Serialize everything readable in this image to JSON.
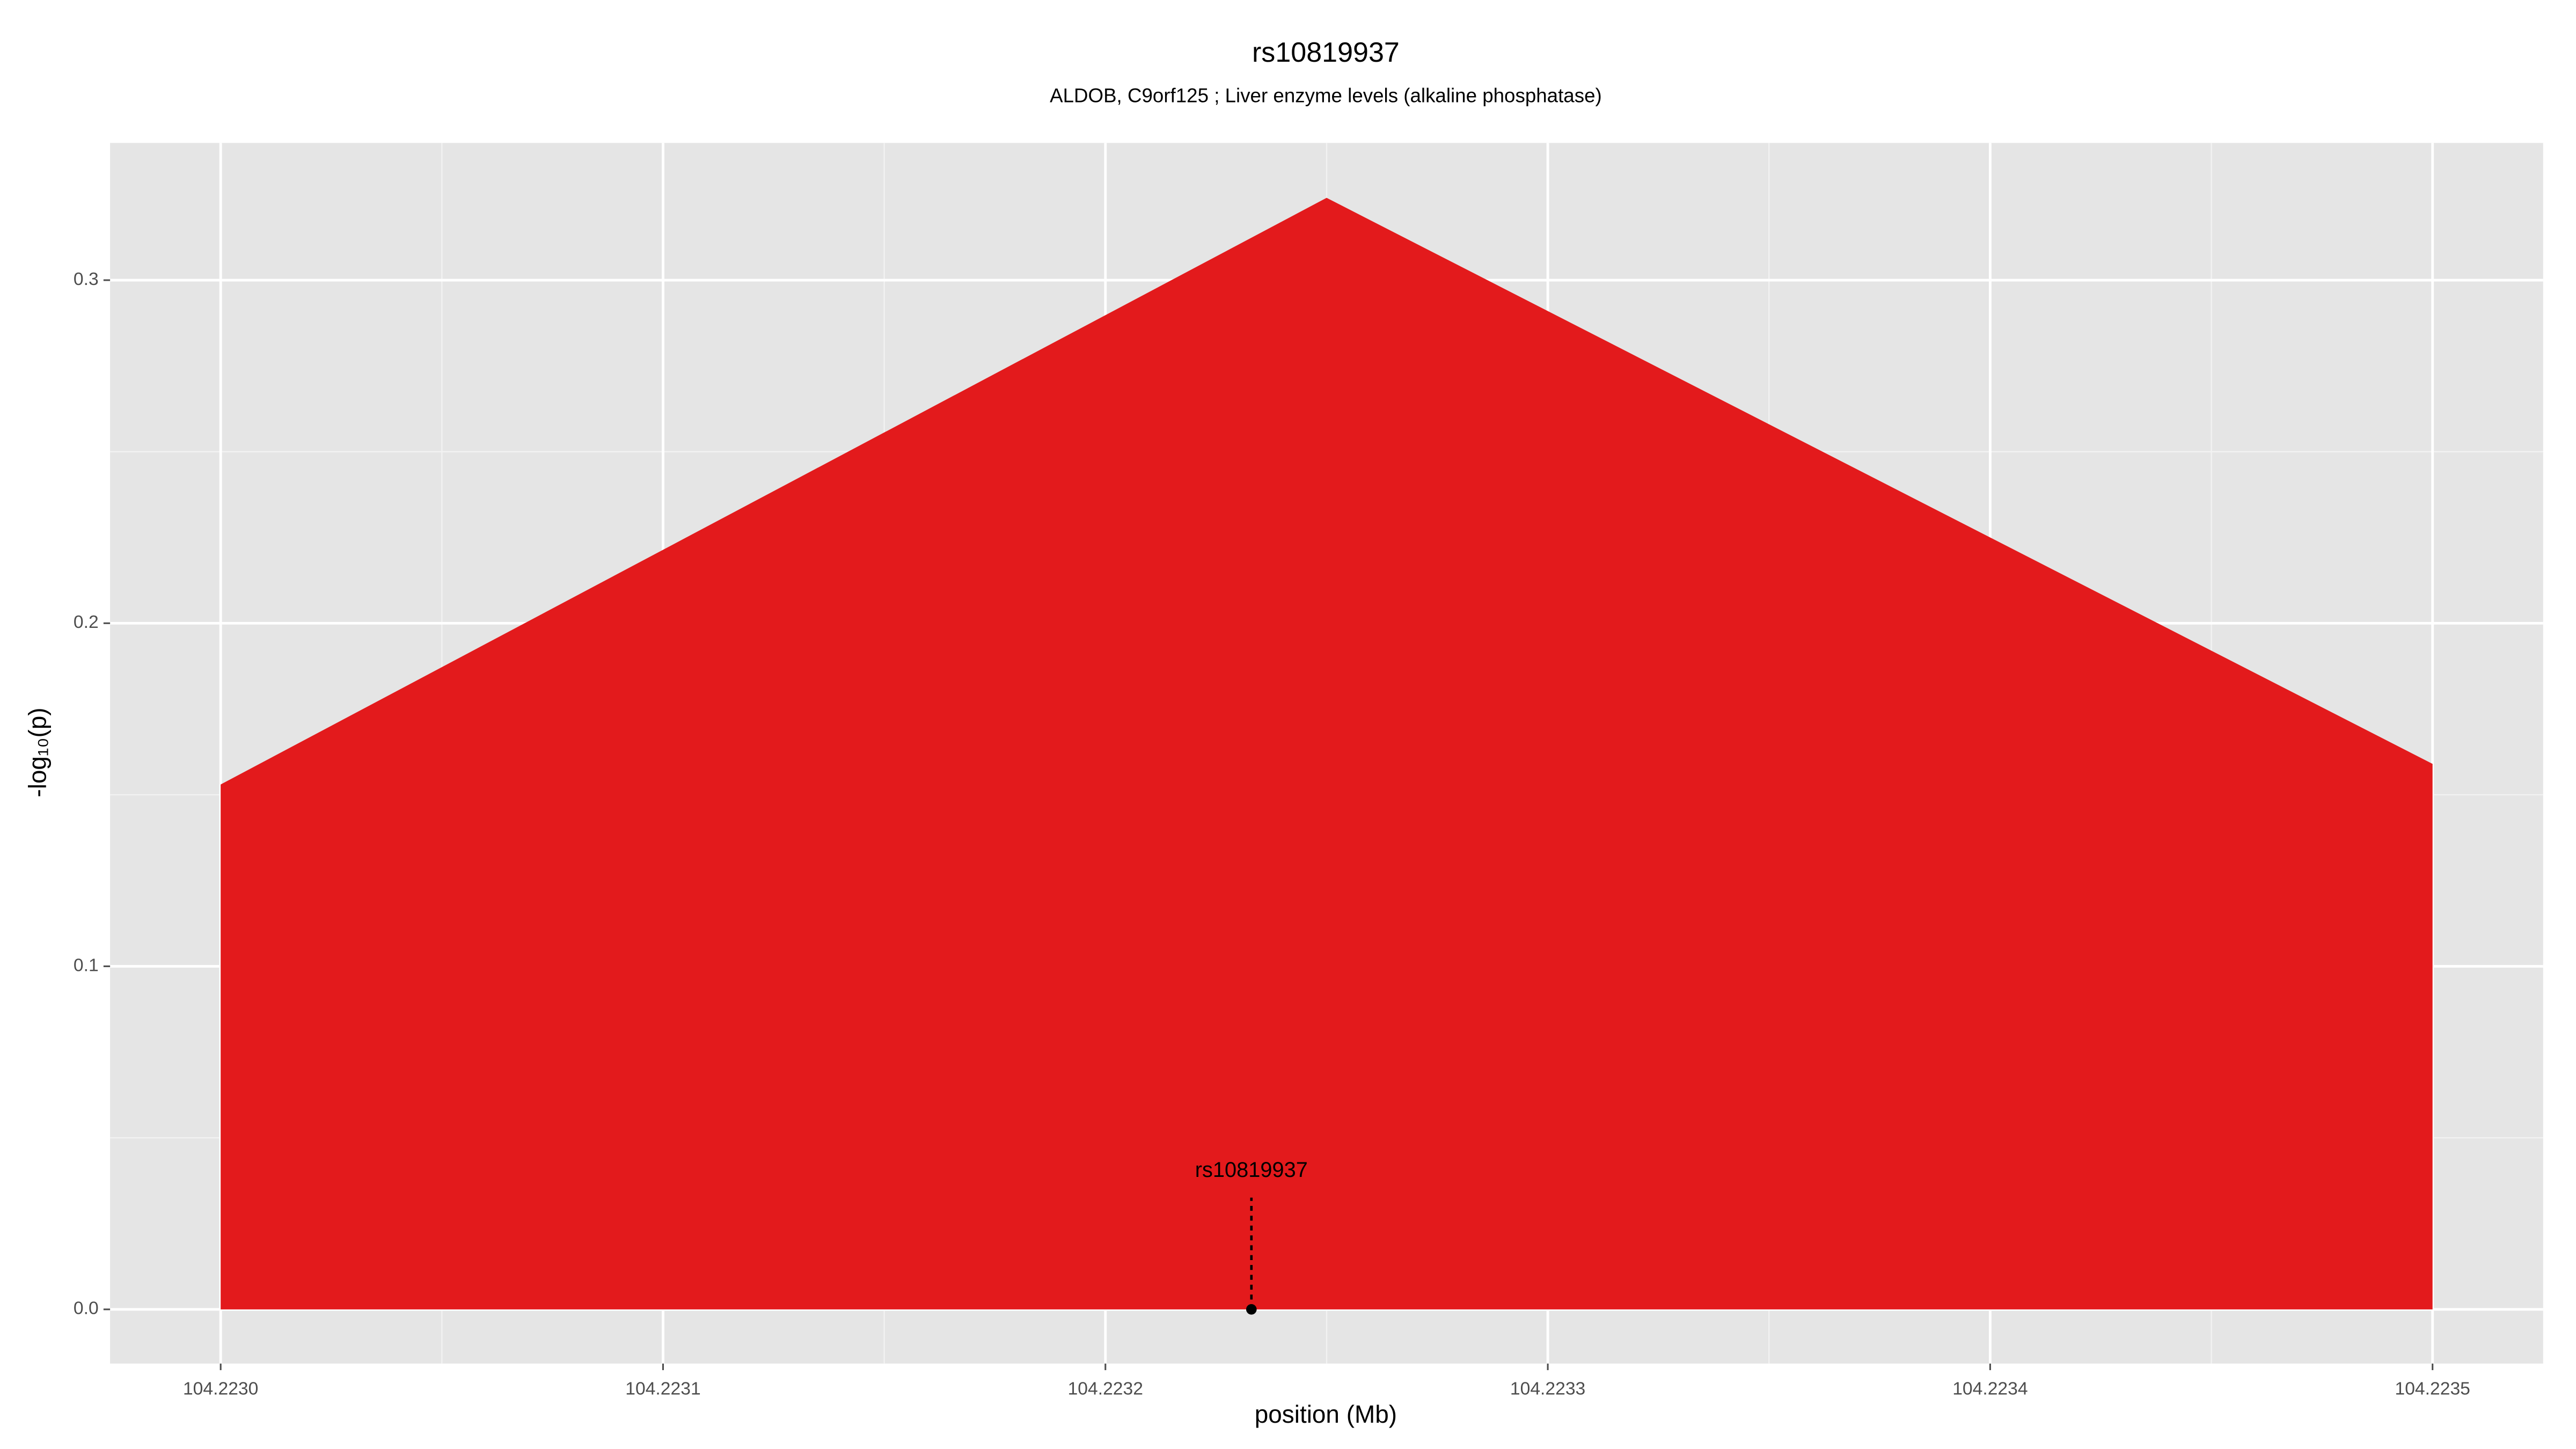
{
  "chart_data": {
    "type": "area",
    "title": "rs10819937",
    "subtitle": "ALDOB, C9orf125 ; Liver enzyme levels (alkaline phosphatase)",
    "x_label": "position (Mb)",
    "y_label": "-log₁₀(p)",
    "x": [
      104.223,
      104.22325,
      104.2235
    ],
    "values": [
      0.153,
      0.324,
      0.159
    ],
    "color": "#e31a1c",
    "xlim": [
      104.222975,
      104.223525
    ],
    "ylim": [
      -0.0158,
      0.34
    ],
    "xticks": [
      {
        "value": 104.223,
        "label": "104.2230"
      },
      {
        "value": 104.2231,
        "label": "104.2231"
      },
      {
        "value": 104.2232,
        "label": "104.2232"
      },
      {
        "value": 104.2233,
        "label": "104.2233"
      },
      {
        "value": 104.2234,
        "label": "104.2234"
      },
      {
        "value": 104.2235,
        "label": "104.2235"
      }
    ],
    "yticks": [
      {
        "value": 0,
        "label": "0.0"
      },
      0.1,
      0.2,
      0.3
    ],
    "grid": true,
    "annotations": [
      {
        "text": "rs10819937",
        "x": 104.223233,
        "y": 0
      }
    ]
  }
}
